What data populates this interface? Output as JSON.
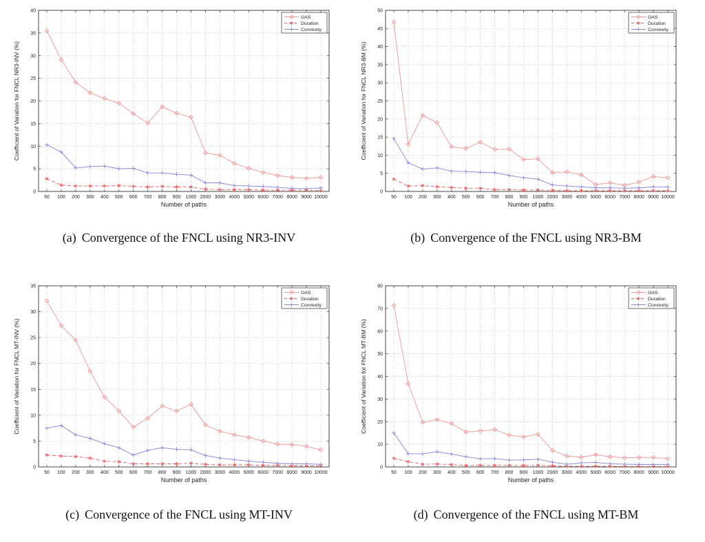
{
  "colors": {
    "background": "#ffffff",
    "axis": "#444444",
    "text": "#222222",
    "grid": "#bdbdbd",
    "oas": "#f19595",
    "duration": "#ea5f5f",
    "convexity": "#8383d9"
  },
  "xlabel": "Number of paths",
  "legend_labels": [
    "OAS",
    "Duration",
    "Convexity"
  ],
  "chart_data": [
    {
      "type": "line",
      "caption_label": "(a)",
      "caption_text": "Convergence of the FNCL using NR3-INV",
      "xlabel": "Number of paths",
      "ylabel": "Coefficient of Variation for FNCL NR3-INV (%)",
      "ylim": [
        0,
        40
      ],
      "ytick": 5,
      "grid": true,
      "legend_position": "top-right",
      "categories": [
        50,
        100,
        200,
        300,
        400,
        500,
        600,
        700,
        800,
        900,
        1000,
        2000,
        3000,
        4000,
        5000,
        6000,
        7000,
        8000,
        9000,
        10000
      ],
      "series": [
        {
          "name": "OAS",
          "color": "#f19595",
          "style": "solid",
          "marker": "diamond",
          "values": [
            35.5,
            29.1,
            24.1,
            21.8,
            20.5,
            19.5,
            17.2,
            15.1,
            18.7,
            17.3,
            16.4,
            8.5,
            8.0,
            6.2,
            5.1,
            4.2,
            3.5,
            3.1,
            2.9,
            3.1
          ]
        },
        {
          "name": "Duration",
          "color": "#ea5f5f",
          "style": "dashed",
          "marker": "asterisk",
          "values": [
            2.8,
            1.4,
            1.2,
            1.2,
            1.2,
            1.3,
            1.1,
            1.0,
            1.1,
            1.0,
            1.0,
            0.5,
            0.4,
            0.4,
            0.4,
            0.3,
            0.3,
            0.3,
            0.3,
            0.2
          ]
        },
        {
          "name": "Convexity",
          "color": "#8383d9",
          "style": "solid",
          "marker": "plus",
          "values": [
            10.3,
            8.7,
            5.2,
            5.5,
            5.6,
            5.0,
            5.1,
            4.1,
            4.1,
            3.8,
            3.6,
            1.9,
            1.9,
            1.3,
            1.2,
            1.1,
            0.9,
            0.7,
            0.6,
            0.8
          ]
        }
      ]
    },
    {
      "type": "line",
      "caption_label": "(b)",
      "caption_text": "Convergence of the FNCL using NR3-BM",
      "xlabel": "Number of paths",
      "ylabel": "Coefficient of Variation for FNCL NR3-BM (%)",
      "ylim": [
        0,
        50
      ],
      "ytick": 5,
      "grid": true,
      "legend_position": "top-right",
      "categories": [
        50,
        100,
        200,
        300,
        400,
        500,
        600,
        700,
        800,
        900,
        1000,
        2000,
        3000,
        4000,
        5000,
        6000,
        7000,
        8000,
        9000,
        10000
      ],
      "series": [
        {
          "name": "OAS",
          "color": "#f19595",
          "style": "solid",
          "marker": "diamond",
          "values": [
            46.8,
            13.0,
            21.0,
            19.0,
            12.3,
            11.9,
            13.6,
            11.6,
            11.7,
            8.8,
            9.0,
            5.2,
            5.4,
            4.6,
            1.9,
            2.4,
            1.7,
            2.6,
            4.1,
            3.8
          ]
        },
        {
          "name": "Duration",
          "color": "#ea5f5f",
          "style": "dashed",
          "marker": "asterisk",
          "values": [
            3.4,
            1.5,
            1.6,
            1.3,
            1.1,
            0.9,
            0.9,
            0.5,
            0.5,
            0.4,
            0.4,
            0.3,
            0.2,
            0.2,
            0.2,
            0.2,
            0.2,
            0.2,
            0.2,
            0.2
          ]
        },
        {
          "name": "Convexity",
          "color": "#8383d9",
          "style": "solid",
          "marker": "plus",
          "values": [
            14.6,
            7.9,
            6.2,
            6.5,
            5.6,
            5.5,
            5.3,
            5.2,
            4.4,
            3.8,
            3.4,
            1.8,
            1.5,
            1.3,
            1.0,
            1.0,
            0.9,
            1.0,
            1.3,
            1.2
          ]
        }
      ]
    },
    {
      "type": "line",
      "caption_label": "(c)",
      "caption_text": "Convergence of the FNCL using MT-INV",
      "xlabel": "Number of paths",
      "ylabel": "Coefficient of Variation for FNCL MT-INV (%)",
      "ylim": [
        0,
        35
      ],
      "ytick": 5,
      "grid": true,
      "legend_position": "top-right",
      "categories": [
        50,
        100,
        200,
        300,
        400,
        500,
        600,
        700,
        800,
        900,
        1000,
        2000,
        3000,
        4000,
        5000,
        6000,
        7000,
        8000,
        9000,
        10000
      ],
      "series": [
        {
          "name": "OAS",
          "color": "#f19595",
          "style": "solid",
          "marker": "diamond",
          "values": [
            32.1,
            27.3,
            24.5,
            18.5,
            13.5,
            10.8,
            7.7,
            9.4,
            11.8,
            10.8,
            12.1,
            8.1,
            6.9,
            6.2,
            5.7,
            5.0,
            4.4,
            4.3,
            4.0,
            3.3
          ]
        },
        {
          "name": "Duration",
          "color": "#ea5f5f",
          "style": "dashed",
          "marker": "asterisk",
          "values": [
            2.3,
            2.1,
            2.0,
            1.7,
            1.1,
            1.0,
            0.6,
            0.6,
            0.6,
            0.6,
            0.7,
            0.5,
            0.4,
            0.4,
            0.4,
            0.3,
            0.3,
            0.2,
            0.2,
            0.2
          ]
        },
        {
          "name": "Convexity",
          "color": "#8383d9",
          "style": "solid",
          "marker": "plus",
          "values": [
            7.5,
            8.0,
            6.2,
            5.5,
            4.5,
            3.7,
            2.3,
            3.2,
            3.7,
            3.4,
            3.3,
            2.2,
            1.7,
            1.4,
            1.1,
            0.9,
            0.7,
            0.6,
            0.6,
            0.5
          ]
        }
      ]
    },
    {
      "type": "line",
      "caption_label": "(d)",
      "caption_text": "Convergence of the FNCL using MT-BM",
      "xlabel": "Number of paths",
      "ylabel": "Coefficient of Variation for FNCL MT-BM (%)",
      "ylim": [
        0,
        80
      ],
      "ytick": 10,
      "grid": true,
      "legend_position": "top-right",
      "categories": [
        50,
        100,
        200,
        300,
        400,
        500,
        600,
        700,
        800,
        900,
        1000,
        2000,
        3000,
        4000,
        5000,
        6000,
        7000,
        8000,
        9000,
        10000
      ],
      "series": [
        {
          "name": "OAS",
          "color": "#f19595",
          "style": "solid",
          "marker": "diamond",
          "values": [
            71.3,
            36.7,
            19.7,
            20.9,
            19.2,
            15.4,
            15.9,
            16.5,
            14.0,
            13.3,
            14.4,
            7.3,
            4.8,
            4.3,
            5.4,
            4.5,
            4.0,
            4.2,
            4.2,
            3.6
          ]
        },
        {
          "name": "Duration",
          "color": "#ea5f5f",
          "style": "dashed",
          "marker": "asterisk",
          "values": [
            3.8,
            2.3,
            1.2,
            1.3,
            1.0,
            0.6,
            0.7,
            0.7,
            0.7,
            0.6,
            0.7,
            0.5,
            0.3,
            0.3,
            0.3,
            0.3,
            0.2,
            0.2,
            0.2,
            0.2
          ]
        },
        {
          "name": "Convexity",
          "color": "#8383d9",
          "style": "solid",
          "marker": "plus",
          "values": [
            15.0,
            5.8,
            5.8,
            6.7,
            5.7,
            4.5,
            3.6,
            3.7,
            3.0,
            3.1,
            3.4,
            2.1,
            1.2,
            1.8,
            2.0,
            1.4,
            1.2,
            1.1,
            1.1,
            1.1
          ]
        }
      ]
    }
  ]
}
